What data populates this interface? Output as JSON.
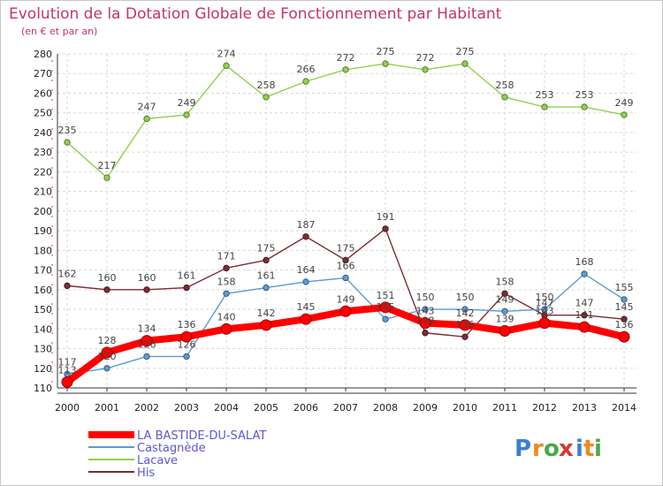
{
  "chart_data": {
    "type": "line",
    "title": "Evolution de la Dotation Globale de Fonctionnement par Habitant",
    "subtitle": "(en € et par an)",
    "xlabel": "",
    "ylabel": "",
    "x": [
      "2000",
      "2001",
      "2002",
      "2003",
      "2004",
      "2005",
      "2006",
      "2007",
      "2008",
      "2009",
      "2010",
      "2011",
      "2012",
      "2013",
      "2014"
    ],
    "ylim": [
      110,
      280
    ],
    "yticks": [
      110,
      120,
      130,
      140,
      150,
      160,
      170,
      180,
      190,
      200,
      210,
      220,
      230,
      240,
      250,
      260,
      270,
      280
    ],
    "grid": true,
    "legend_position": "bottom-left",
    "series": [
      {
        "name": "LA BASTIDE-DU-SALAT",
        "color": "#ff0000",
        "values": [
          113,
          128,
          134,
          136,
          140,
          142,
          145,
          149,
          151,
          143,
          142,
          139,
          143,
          141,
          136
        ]
      },
      {
        "name": "Castagnède",
        "color": "#5b9bd5",
        "values": [
          117,
          120,
          126,
          126,
          158,
          161,
          164,
          166,
          145,
          150,
          150,
          149,
          150,
          168,
          155
        ]
      },
      {
        "name": "Lacave",
        "color": "#92d050",
        "values": [
          235,
          217,
          247,
          249,
          274,
          258,
          266,
          272,
          275,
          272,
          275,
          258,
          253,
          253,
          249
        ]
      },
      {
        "name": "His",
        "color": "#7b2c34",
        "values": [
          162,
          160,
          160,
          161,
          171,
          175,
          187,
          175,
          191,
          138,
          136,
          158,
          147,
          147,
          145
        ]
      }
    ]
  },
  "logo": {
    "letters": [
      "P",
      "r",
      "o",
      "x",
      "i",
      "t",
      "i"
    ],
    "colors": [
      "#3b7fd0",
      "#f08a1c",
      "#4aa84a",
      "#d43a2f",
      "#3b7fd0",
      "#f08a1c",
      "#4aa84a"
    ]
  }
}
